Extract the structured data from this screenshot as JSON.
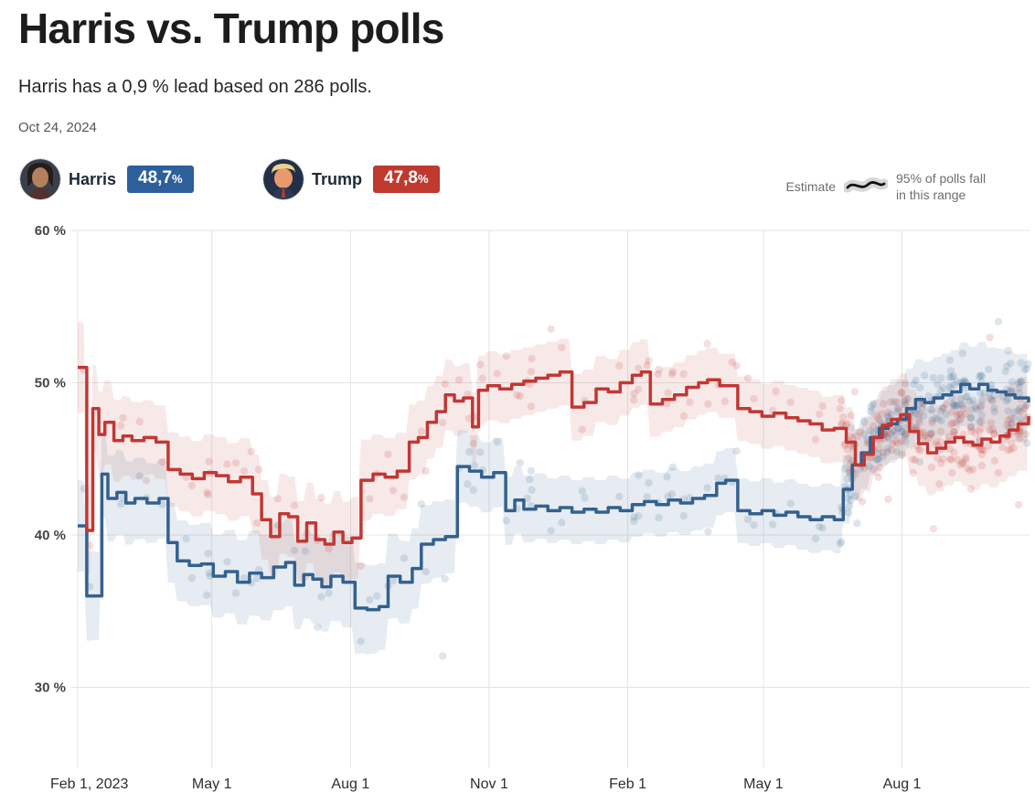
{
  "header": {
    "title": "Harris vs. Trump polls",
    "subtitle": "Harris has a 0,9 % lead based on 286 polls.",
    "date": "Oct 24, 2024"
  },
  "legend": {
    "harris": {
      "name": "Harris",
      "value": "48,7",
      "suffix": "%"
    },
    "trump": {
      "name": "Trump",
      "value": "47,8",
      "suffix": "%"
    },
    "estimate_label": "Estimate",
    "range_label_line1": "95% of polls fall",
    "range_label_line2": "in this range"
  },
  "colors": {
    "harris_line": "#33618f",
    "trump_line": "#c23733",
    "harris_band": "rgba(51,97,143,0.12)",
    "trump_band": "rgba(194,55,51,0.11)",
    "harris_badge": "#2d5f9b",
    "trump_badge": "#c0392f",
    "grid": "#e4e4e4",
    "x_label": "#2e2e2e",
    "y_label": "#454545"
  },
  "chart_data": {
    "type": "line",
    "title": "Harris vs. Trump polls",
    "subtitle": "Harris has a 0,9 % lead based on 286 polls.",
    "as_of_date": "Oct 24, 2024",
    "legend_position": "top",
    "grid": true,
    "x_axis": {
      "unit": "days since Feb 1, 2023",
      "range": [
        0,
        631
      ],
      "ticks": [
        {
          "day": 0,
          "label": "Feb 1, 2023"
        },
        {
          "day": 89,
          "label": "May 1"
        },
        {
          "day": 181,
          "label": "Aug 1"
        },
        {
          "day": 273,
          "label": "Nov 1"
        },
        {
          "day": 365,
          "label": "Feb 1"
        },
        {
          "day": 455,
          "label": "May 1"
        },
        {
          "day": 547,
          "label": "Aug 1"
        }
      ]
    },
    "y_axis": {
      "unit": "percent",
      "range_shown": [
        27,
        60
      ],
      "ticks": [
        {
          "value": 60,
          "label": "60 %"
        },
        {
          "value": 50,
          "label": "50 %"
        },
        {
          "value": 40,
          "label": "40 %"
        },
        {
          "value": 30,
          "label": "30 %"
        }
      ]
    },
    "series": [
      {
        "name": "Harris",
        "current_value": "48,7%",
        "points": [
          [
            0,
            40.6
          ],
          [
            6,
            36.0
          ],
          [
            16,
            44.0
          ],
          [
            20,
            42.4
          ],
          [
            26,
            42.8
          ],
          [
            32,
            42.1
          ],
          [
            38,
            42.4
          ],
          [
            46,
            42.1
          ],
          [
            54,
            42.4
          ],
          [
            60,
            39.5
          ],
          [
            66,
            38.3
          ],
          [
            74,
            38.0
          ],
          [
            82,
            38.1
          ],
          [
            90,
            37.3
          ],
          [
            98,
            37.6
          ],
          [
            106,
            36.9
          ],
          [
            114,
            37.5
          ],
          [
            122,
            37.2
          ],
          [
            130,
            37.9
          ],
          [
            138,
            38.2
          ],
          [
            144,
            36.7
          ],
          [
            150,
            37.4
          ],
          [
            156,
            37.1
          ],
          [
            162,
            36.6
          ],
          [
            168,
            37.3
          ],
          [
            176,
            36.9
          ],
          [
            184,
            35.2
          ],
          [
            192,
            35.1
          ],
          [
            200,
            35.3
          ],
          [
            206,
            37.3
          ],
          [
            214,
            36.9
          ],
          [
            222,
            37.8
          ],
          [
            228,
            39.4
          ],
          [
            236,
            39.7
          ],
          [
            244,
            39.9
          ],
          [
            252,
            44.5
          ],
          [
            260,
            44.2
          ],
          [
            268,
            43.8
          ],
          [
            276,
            44.1
          ],
          [
            284,
            41.6
          ],
          [
            290,
            42.3
          ],
          [
            296,
            41.7
          ],
          [
            304,
            41.9
          ],
          [
            312,
            41.6
          ],
          [
            320,
            41.8
          ],
          [
            328,
            41.5
          ],
          [
            336,
            41.7
          ],
          [
            344,
            41.5
          ],
          [
            352,
            41.8
          ],
          [
            360,
            41.6
          ],
          [
            368,
            42.0
          ],
          [
            376,
            42.2
          ],
          [
            384,
            42.0
          ],
          [
            392,
            42.3
          ],
          [
            400,
            42.1
          ],
          [
            408,
            42.4
          ],
          [
            416,
            42.6
          ],
          [
            424,
            43.4
          ],
          [
            430,
            43.6
          ],
          [
            438,
            41.6
          ],
          [
            446,
            41.4
          ],
          [
            454,
            41.6
          ],
          [
            462,
            41.3
          ],
          [
            470,
            41.5
          ],
          [
            478,
            41.2
          ],
          [
            486,
            41.0
          ],
          [
            494,
            41.2
          ],
          [
            502,
            41.0
          ],
          [
            508,
            43.0
          ],
          [
            514,
            44.6
          ],
          [
            520,
            45.4
          ],
          [
            526,
            46.4
          ],
          [
            532,
            47.0
          ],
          [
            538,
            47.3
          ],
          [
            544,
            47.6
          ],
          [
            550,
            48.3
          ],
          [
            556,
            48.9
          ],
          [
            562,
            48.7
          ],
          [
            568,
            49.0
          ],
          [
            574,
            49.2
          ],
          [
            580,
            49.4
          ],
          [
            586,
            49.9
          ],
          [
            592,
            49.6
          ],
          [
            598,
            49.9
          ],
          [
            604,
            49.5
          ],
          [
            610,
            49.4
          ],
          [
            616,
            49.2
          ],
          [
            622,
            49.0
          ],
          [
            631,
            48.7
          ]
        ],
        "band_half_width": [
          [
            0,
            3.0
          ],
          [
            50,
            2.6
          ],
          [
            120,
            2.8
          ],
          [
            185,
            3.0
          ],
          [
            250,
            2.4
          ],
          [
            320,
            2.1
          ],
          [
            430,
            2.1
          ],
          [
            505,
            2.2
          ],
          [
            545,
            2.6
          ],
          [
            631,
            2.9
          ]
        ]
      },
      {
        "name": "Trump",
        "current_value": "47,8%",
        "points": [
          [
            0,
            51.0
          ],
          [
            6,
            40.3
          ],
          [
            10,
            48.3
          ],
          [
            14,
            46.6
          ],
          [
            18,
            47.4
          ],
          [
            24,
            46.2
          ],
          [
            30,
            46.5
          ],
          [
            36,
            46.2
          ],
          [
            44,
            46.4
          ],
          [
            52,
            46.1
          ],
          [
            60,
            44.3
          ],
          [
            68,
            44.0
          ],
          [
            76,
            43.7
          ],
          [
            84,
            44.1
          ],
          [
            92,
            43.9
          ],
          [
            100,
            43.5
          ],
          [
            108,
            43.8
          ],
          [
            116,
            42.7
          ],
          [
            122,
            41.0
          ],
          [
            128,
            39.9
          ],
          [
            134,
            41.4
          ],
          [
            140,
            41.2
          ],
          [
            146,
            39.6
          ],
          [
            152,
            40.8
          ],
          [
            158,
            39.7
          ],
          [
            164,
            39.4
          ],
          [
            170,
            40.2
          ],
          [
            176,
            39.5
          ],
          [
            182,
            39.8
          ],
          [
            188,
            43.6
          ],
          [
            196,
            44.0
          ],
          [
            204,
            43.8
          ],
          [
            212,
            44.2
          ],
          [
            220,
            46.1
          ],
          [
            226,
            46.4
          ],
          [
            232,
            47.4
          ],
          [
            238,
            48.1
          ],
          [
            244,
            49.2
          ],
          [
            250,
            48.8
          ],
          [
            256,
            49.0
          ],
          [
            262,
            47.1
          ],
          [
            266,
            49.5
          ],
          [
            272,
            49.8
          ],
          [
            280,
            49.6
          ],
          [
            288,
            49.9
          ],
          [
            296,
            50.1
          ],
          [
            304,
            50.3
          ],
          [
            312,
            50.5
          ],
          [
            320,
            50.7
          ],
          [
            328,
            48.4
          ],
          [
            336,
            48.7
          ],
          [
            344,
            49.6
          ],
          [
            352,
            49.4
          ],
          [
            360,
            50.0
          ],
          [
            368,
            50.5
          ],
          [
            374,
            50.7
          ],
          [
            380,
            48.6
          ],
          [
            388,
            48.9
          ],
          [
            396,
            49.2
          ],
          [
            404,
            49.7
          ],
          [
            412,
            50.0
          ],
          [
            418,
            50.2
          ],
          [
            426,
            49.8
          ],
          [
            438,
            48.3
          ],
          [
            446,
            48.1
          ],
          [
            454,
            47.8
          ],
          [
            462,
            48.0
          ],
          [
            470,
            47.7
          ],
          [
            478,
            47.5
          ],
          [
            486,
            47.3
          ],
          [
            494,
            46.9
          ],
          [
            502,
            47.0
          ],
          [
            510,
            46.1
          ],
          [
            516,
            44.6
          ],
          [
            522,
            45.3
          ],
          [
            528,
            46.4
          ],
          [
            534,
            47.2
          ],
          [
            540,
            47.6
          ],
          [
            546,
            47.9
          ],
          [
            552,
            46.8
          ],
          [
            558,
            46.0
          ],
          [
            564,
            45.4
          ],
          [
            570,
            45.7
          ],
          [
            576,
            46.1
          ],
          [
            582,
            46.4
          ],
          [
            588,
            46.1
          ],
          [
            594,
            45.9
          ],
          [
            600,
            46.3
          ],
          [
            606,
            46.1
          ],
          [
            612,
            46.5
          ],
          [
            618,
            46.9
          ],
          [
            624,
            47.3
          ],
          [
            631,
            47.8
          ]
        ],
        "band_half_width": [
          [
            0,
            3.0
          ],
          [
            50,
            2.4
          ],
          [
            120,
            2.6
          ],
          [
            185,
            2.7
          ],
          [
            250,
            2.3
          ],
          [
            320,
            2.2
          ],
          [
            430,
            2.1
          ],
          [
            505,
            2.2
          ],
          [
            545,
            2.7
          ],
          [
            631,
            3.1
          ]
        ]
      }
    ],
    "poll_scatter": {
      "total_polls": 286,
      "seed": 7,
      "dot_radius": 4.2,
      "dot_opacity": 0.16,
      "segments": [
        {
          "from_day": 2,
          "to_day": 505,
          "polls": 85,
          "spread": 2.4
        },
        {
          "from_day": 505,
          "to_day": 631,
          "polls": 201,
          "spread": 2.3
        }
      ]
    },
    "annotations": {
      "estimate_label": "Estimate",
      "band_label": "95% of polls fall in this range"
    }
  }
}
